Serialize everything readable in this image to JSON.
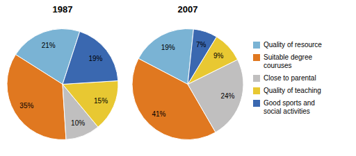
{
  "chart_data": [
    {
      "type": "pie",
      "title": "1987",
      "categories": [
        "Quality of resource",
        "Suitable degree\ncouruses",
        "Close to parental",
        "Quality of teaching",
        "Good sports and\nsocial activities"
      ],
      "values": [
        21,
        35,
        10,
        15,
        19
      ],
      "value_labels": [
        "21%",
        "35%",
        "10%",
        "15%",
        "19%"
      ],
      "colors": [
        "#7ab3d4",
        "#e07820",
        "#c0bfbf",
        "#e8c832",
        "#3a68b0"
      ],
      "data_labels": true
    },
    {
      "type": "pie",
      "title": "2007",
      "categories": [
        "Quality of resource",
        "Suitable degree\ncouruses",
        "Close to parental",
        "Quality of teaching",
        "Good sports and\nsocial activities"
      ],
      "values": [
        19,
        41,
        24,
        9,
        7
      ],
      "value_labels": [
        "19%",
        "41%",
        "24%",
        "9%",
        "7%"
      ],
      "colors": [
        "#7ab3d4",
        "#e07820",
        "#c0bfbf",
        "#e8c832",
        "#3a68b0"
      ],
      "data_labels": true,
      "legend": "right"
    }
  ]
}
